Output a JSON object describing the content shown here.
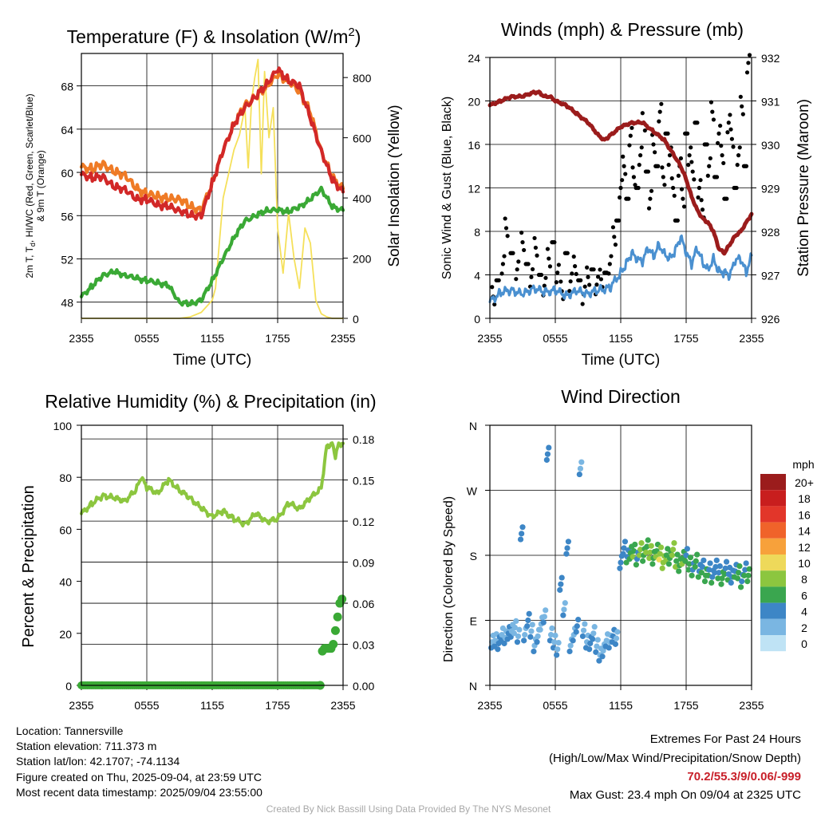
{
  "chart_data": [
    {
      "type": "line",
      "title": "Temperature (F) & Insolation (W/m",
      "title_sup": "2",
      "title_close": ")",
      "xlabel": "Time (UTC)",
      "ylabel_lines": [
        "2m T, T",
        "d",
        ", HI/WC (Red, Green, Scarlet/Blue)",
        "& 9m T (Orange)"
      ],
      "y2label": "Solar Insolation (Yellow)",
      "x_ticks": [
        "2355",
        "0555",
        "1155",
        "1755",
        "2355"
      ],
      "x_range_hours": [
        0,
        24
      ],
      "ylim": [
        46.5,
        71
      ],
      "y_ticks": [
        48,
        52,
        56,
        60,
        64,
        68
      ],
      "y2lim": [
        0,
        880
      ],
      "y2_ticks": [
        0,
        200,
        400,
        600,
        800
      ],
      "series": [
        {
          "color": "#ef7b26",
          "hours": [
            0,
            1,
            2,
            3,
            4,
            5,
            6,
            7,
            8,
            9,
            10,
            11,
            12,
            13,
            14,
            15,
            16,
            17,
            18,
            19,
            20,
            21,
            22,
            23,
            24
          ],
          "values": [
            60.5,
            60.3,
            60.8,
            60,
            59.8,
            58.5,
            58,
            57.8,
            57.5,
            57.6,
            56.8,
            56.5,
            59,
            62,
            64.5,
            66.2,
            67,
            68,
            69,
            68.5,
            67.5,
            65.5,
            62,
            59.5,
            58.5
          ]
        },
        {
          "color": "#d22828",
          "hours": [
            0,
            1,
            2,
            3,
            4,
            5,
            6,
            7,
            8,
            9,
            10,
            11,
            12,
            13,
            14,
            15,
            16,
            17,
            18,
            19,
            20,
            21,
            22,
            23,
            24
          ],
          "values": [
            59.8,
            59.5,
            59.6,
            58.6,
            58.5,
            57.5,
            57.5,
            57,
            56.8,
            56.5,
            56,
            56,
            59,
            62,
            64.5,
            66,
            67,
            68.2,
            69.5,
            68.5,
            68,
            65,
            62,
            59.3,
            58.2
          ]
        },
        {
          "color": "#3aa935",
          "hours": [
            0,
            1,
            2,
            3,
            4,
            5,
            6,
            7,
            8,
            9,
            10,
            11,
            12,
            13,
            14,
            15,
            16,
            17,
            18,
            19,
            20,
            21,
            22,
            23,
            24
          ],
          "values": [
            48.5,
            49.5,
            50.5,
            50.8,
            50.5,
            50.2,
            50,
            49.8,
            49.5,
            48,
            47.8,
            48.2,
            50,
            52,
            54,
            55.5,
            56,
            56.5,
            56.5,
            56.4,
            56.8,
            57.5,
            58.5,
            56.8,
            56.5
          ]
        },
        {
          "color": "#f5e05a",
          "hours": [
            0,
            9,
            10,
            11,
            12,
            12.3,
            13,
            14,
            14.5,
            15,
            15.3,
            15.6,
            15.9,
            16.2,
            16.5,
            16.8,
            17.2,
            17.6,
            18,
            18.5,
            19,
            19.5,
            20,
            20.5,
            21,
            21.5,
            22,
            22.5,
            23,
            23.5,
            24
          ],
          "values": [
            0,
            0,
            5,
            20,
            60,
            100,
            400,
            560,
            610,
            700,
            500,
            720,
            800,
            860,
            480,
            820,
            600,
            700,
            300,
            150,
            350,
            200,
            100,
            300,
            250,
            60,
            15,
            5,
            0,
            0,
            0
          ]
        }
      ]
    },
    {
      "type": "line",
      "title": "Winds (mph) & Pressure (mb)",
      "xlabel": "Time (UTC)",
      "ylabel": "Sonic Wind & Gust (Blue, Black)",
      "y2label": "Station Pressure (Maroon)",
      "x_ticks": [
        "2355",
        "0555",
        "1155",
        "1755",
        "2355"
      ],
      "x_range_hours": [
        0,
        24
      ],
      "ylim": [
        0,
        24
      ],
      "y_ticks": [
        0,
        4,
        8,
        12,
        16,
        20,
        24
      ],
      "y2lim": [
        926,
        932
      ],
      "y2_ticks": [
        926,
        927,
        928,
        929,
        930,
        931,
        932
      ],
      "series": [
        {
          "color": "#e2e2e2",
          "style": "points",
          "hours": [
            0.3,
            0.7,
            1.2,
            1.5,
            2,
            2.5,
            3,
            3.4,
            3.8,
            4.2,
            4.6,
            5,
            5.4,
            5.8,
            6.2,
            6.6,
            7,
            7.4,
            7.8,
            8.2,
            8.6,
            9,
            9.4,
            9.8,
            10.2,
            10.6,
            11,
            11.4,
            11.7,
            12,
            12.3,
            12.6,
            12.9,
            13.2,
            13.5,
            13.8,
            14.1,
            14.4,
            14.7,
            15,
            15.3,
            15.6,
            15.9,
            16.2,
            16.5,
            16.8,
            17.1,
            17.4,
            17.7,
            18,
            18.3,
            18.6,
            18.9,
            19.2,
            19.5,
            19.8,
            20.1,
            20.4,
            20.7,
            21,
            21.3,
            21.6,
            21.9,
            22.2,
            22.5,
            22.8,
            23.1,
            23.4,
            23.7
          ],
          "values": [
            2,
            3.5,
            5,
            8.3,
            6,
            4.5,
            7,
            5,
            3.8,
            6.5,
            4,
            3,
            5.5,
            7,
            4.2,
            2.5,
            6,
            3.4,
            4.8,
            3.5,
            2.2,
            3.8,
            4.5,
            3.1,
            3.6,
            4.2,
            5,
            7.5,
            9,
            12,
            14,
            11,
            16.8,
            13,
            12,
            15,
            18,
            13.5,
            11,
            16,
            14,
            19,
            13,
            17,
            15,
            12,
            9,
            14,
            11,
            17,
            15,
            13.5,
            18,
            12,
            10,
            16,
            14,
            19,
            13,
            17,
            15,
            11,
            18,
            16.5,
            12,
            15,
            19.5,
            14,
            23.5
          ]
        },
        {
          "color": "#4a90d0",
          "hours": [
            0,
            1,
            2,
            3,
            4,
            5,
            6,
            7,
            8,
            9,
            10,
            11,
            12,
            12.5,
            13,
            13.5,
            14,
            14.5,
            15,
            15.5,
            16,
            16.5,
            17,
            17.5,
            18,
            18.5,
            19,
            19.5,
            20,
            20.5,
            21,
            21.5,
            22,
            22.5,
            23,
            23.5,
            24
          ],
          "values": [
            1.5,
            2.4,
            2.6,
            2.2,
            2.8,
            2.4,
            2.6,
            2.1,
            2.5,
            2.3,
            2.6,
            2.8,
            4.2,
            5,
            6,
            5.4,
            5.2,
            6.5,
            5.7,
            6.8,
            6,
            5.5,
            6.2,
            7.5,
            6,
            5,
            6.5,
            5.2,
            4.5,
            5.5,
            4.3,
            4.2,
            3.9,
            5.3,
            5.5,
            4.2,
            5.8
          ]
        },
        {
          "color": "#9b1c1c",
          "axis": "y2",
          "hours": [
            0,
            1,
            2,
            3,
            4,
            4.5,
            5,
            5.5,
            6,
            7,
            8,
            9,
            10,
            10.5,
            11,
            12,
            13,
            14,
            15,
            16,
            17,
            17.5,
            18,
            18.5,
            19,
            19.5,
            20,
            20.5,
            21,
            21.5,
            22,
            22.5,
            23,
            23.5,
            24
          ],
          "values": [
            930.9,
            931,
            931.1,
            931.1,
            931.2,
            931.2,
            931.1,
            931.1,
            931,
            930.9,
            930.7,
            930.5,
            930.2,
            930.1,
            930.2,
            930.4,
            930.5,
            930.5,
            930.3,
            930.1,
            929.7,
            929.5,
            929.2,
            928.8,
            928.5,
            928.3,
            928.2,
            928,
            927.6,
            927.5,
            927.7,
            927.9,
            928,
            928.2,
            928.4
          ]
        }
      ]
    },
    {
      "type": "line",
      "title": "Relative Humidity (%) & Precipitation (in)",
      "xlabel": "",
      "ylabel": "Percent & Precipitation",
      "x_ticks": [
        "2355",
        "0555",
        "1155",
        "1755",
        "2355"
      ],
      "x_range_hours": [
        0,
        24
      ],
      "ylim": [
        0,
        100
      ],
      "y_ticks": [
        0,
        20,
        40,
        60,
        80,
        100
      ],
      "y2lim": [
        0,
        0.19
      ],
      "y2_ticks": [
        "0.00",
        "0.03",
        "0.06",
        "0.09",
        "0.12",
        "0.15",
        "0.18"
      ],
      "series": [
        {
          "color": "#8cc63f",
          "hours": [
            0,
            1,
            2,
            3,
            4,
            5,
            5.5,
            6,
            7,
            8,
            9,
            10,
            11,
            12,
            13,
            14,
            15,
            16,
            17,
            18,
            19,
            20,
            21,
            22,
            22.5,
            23,
            23.3,
            23.6,
            24
          ],
          "values": [
            66,
            70,
            73,
            72,
            71,
            75,
            80,
            76,
            74,
            79,
            75,
            72,
            68,
            65,
            67,
            64,
            62,
            66,
            63,
            64,
            70,
            68,
            72,
            76,
            92,
            93,
            88,
            93,
            93
          ]
        },
        {
          "color": "#3aa935",
          "style": "points-thick",
          "axis": "y2",
          "hours": [
            0,
            4,
            8,
            12,
            16,
            20,
            21.9,
            22.1,
            22.3,
            22.5,
            22.7,
            22.9,
            23.1,
            23.3,
            23.5,
            23.7,
            23.9
          ],
          "values": [
            0,
            0,
            0,
            0,
            0,
            0,
            0,
            0.025,
            0.027,
            0.027,
            0.027,
            0.027,
            0.03,
            0.04,
            0.05,
            0.06,
            0.063
          ]
        }
      ]
    },
    {
      "type": "scatter",
      "title": "Wind Direction",
      "ylabel": "Direction (Colored By Speed)",
      "x_ticks": [
        "2355",
        "0555",
        "1155",
        "1755",
        "2355"
      ],
      "x_range_hours": [
        0,
        24
      ],
      "y_ticks": [
        "N",
        "E",
        "S",
        "W",
        "N"
      ],
      "ylim_deg": [
        0,
        360
      ],
      "legend_title": "mph",
      "legend_labels": [
        "20+",
        "18",
        "16",
        "14",
        "12",
        "10",
        "8",
        "6",
        "4",
        "2",
        "0"
      ],
      "legend_colors": [
        "#9b1c1c",
        "#c81e1e",
        "#e2362a",
        "#f0632a",
        "#f7a13b",
        "#eed95a",
        "#8cc63f",
        "#3aa64f",
        "#3d86c6",
        "#7ab6e2",
        "#bfe3f5"
      ],
      "points_hours": [
        0.2,
        0.5,
        0.8,
        1.1,
        1.4,
        1.7,
        2,
        2.3,
        2.6,
        2.9,
        3.2,
        3.5,
        3.8,
        4.1,
        4.4,
        4.7,
        5,
        5.3,
        5.6,
        5.9,
        6.2,
        6.5,
        6.8,
        7.1,
        7.4,
        7.7,
        8,
        8.3,
        8.6,
        8.9,
        9.2,
        9.5,
        9.8,
        10.1,
        10.4,
        10.7,
        11,
        11.3,
        11.6,
        12,
        12.3,
        12.6,
        12.9,
        13.2,
        13.5,
        13.8,
        14.1,
        14.4,
        14.7,
        15,
        15.3,
        15.6,
        15.9,
        16.2,
        16.5,
        16.8,
        17.1,
        17.4,
        17.7,
        18,
        18.3,
        18.6,
        18.9,
        19.2,
        19.5,
        19.8,
        20.1,
        20.4,
        20.7,
        21,
        21.3,
        21.6,
        21.9,
        22.2,
        22.5,
        22.8,
        23.1,
        23.4,
        23.7
      ],
      "points_deg": [
        60,
        62,
        58,
        70,
        66,
        72,
        75,
        80,
        68,
        210,
        70,
        90,
        75,
        55,
        68,
        85,
        95,
        320,
        70,
        60,
        50,
        140,
        105,
        190,
        55,
        70,
        82,
        300,
        76,
        60,
        58,
        72,
        54,
        42,
        48,
        62,
        60,
        68,
        65,
        170,
        190,
        178,
        183,
        186,
        175,
        188,
        180,
        192,
        184,
        176,
        186,
        182,
        170,
        180,
        176,
        188,
        172,
        166,
        176,
        180,
        168,
        160,
        172,
        158,
        164,
        152,
        160,
        150,
        164,
        156,
        148,
        162,
        154,
        150,
        158,
        156,
        144,
        160,
        152
      ],
      "points_speed": [
        2,
        2,
        3,
        2,
        2,
        3,
        2,
        1,
        2,
        3,
        2,
        3,
        2,
        2,
        2,
        1,
        2,
        3,
        2,
        2,
        2,
        3,
        2,
        3,
        2,
        2,
        3,
        2,
        2,
        2,
        3,
        2,
        2,
        2,
        2,
        2,
        2,
        3,
        2,
        3,
        3,
        4,
        5,
        6,
        4,
        7,
        5,
        6,
        7,
        5,
        6,
        8,
        7,
        6,
        5,
        7,
        6,
        5,
        6,
        4,
        5,
        4,
        5,
        4,
        4,
        5,
        4,
        4,
        3,
        4,
        5,
        4,
        4,
        3,
        4,
        5,
        4,
        4,
        5
      ]
    }
  ],
  "info": {
    "location": "Location: Tannersville",
    "elevation": "Station elevation: 711.373 m",
    "latlon": "Station lat/lon: 42.1707; -74.1134",
    "created": "Figure created on Thu, 2025-09-04, at 23:59 UTC",
    "recent": "Most recent data timestamp: 2025/09/04 23:55:00"
  },
  "extremes": {
    "title": "Extremes For Past 24 Hours",
    "subtitle": "(High/Low/Max Wind/Precipitation/Snow Depth)",
    "values": "70.2/55.3/9/0.06/-999",
    "values_color": "#c8202a",
    "max_gust": "Max Gust: 23.4 mph On 09/04 at 2325 UTC"
  },
  "credit": "Created By Nick Bassill Using Data Provided By The NYS Mesonet"
}
